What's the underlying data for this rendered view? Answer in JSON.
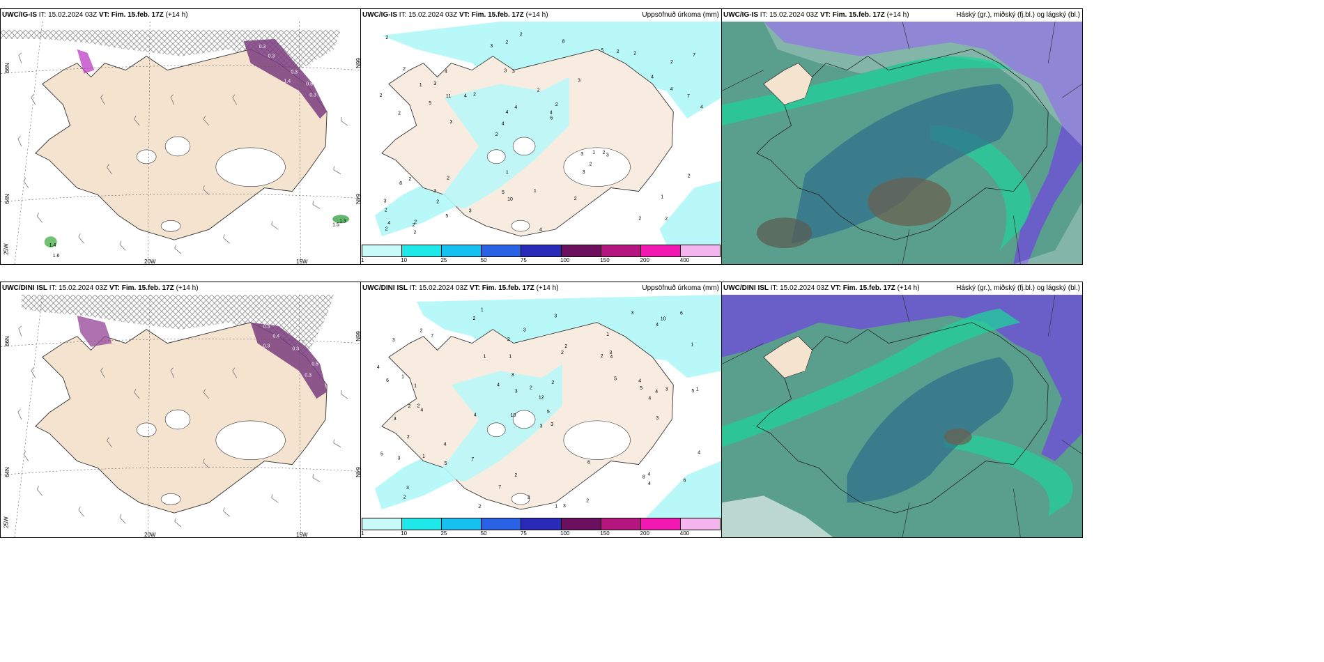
{
  "panels": [
    {
      "model": "UWC/IG-IS",
      "it_label": "IT:",
      "it": "15.02.2024 03Z",
      "vt_label": "VT:",
      "vt": "Fim. 15.feb. 17Z",
      "lead": "(+14 h)",
      "product": ""
    },
    {
      "model": "UWC/IG-IS",
      "it_label": "IT:",
      "it": "15.02.2024 03Z",
      "vt_label": "VT:",
      "vt": "Fim. 15.feb. 17Z",
      "lead": "(+14 h)",
      "product": "Uppsöfnuð úrkoma (mm)"
    },
    {
      "model": "UWC/IG-IS",
      "it_label": "IT:",
      "it": "15.02.2024 03Z",
      "vt_label": "VT:",
      "vt": "Fim. 15.feb. 17Z",
      "lead": "(+14 h)",
      "product": "Háský (gr.), miðský (fj.bl.) og lágský (bl.)"
    },
    {
      "model": "UWC/DINI ISL",
      "it_label": "IT:",
      "it": "15.02.2024 03Z",
      "vt_label": "VT:",
      "vt": "Fim. 15.feb. 17Z",
      "lead": "(+14 h)",
      "product": ""
    },
    {
      "model": "UWC/DINI ISL",
      "it_label": "IT:",
      "it": "15.02.2024 03Z",
      "vt_label": "VT:",
      "vt": "Fim. 15.feb. 17Z",
      "lead": "(+14 h)",
      "product": "Uppsöfnuð úrkoma (mm)"
    },
    {
      "model": "UWC/DINI ISL",
      "it_label": "IT:",
      "it": "15.02.2024 03Z",
      "vt_label": "VT:",
      "vt": "Fim. 15.feb. 17Z",
      "lead": "(+14 h)",
      "product": "Háský (gr.), miðský (fj.bl.) og lágský (bl.)"
    }
  ],
  "grid_labels": {
    "lat_66": "66N",
    "lat_64": "64N",
    "lon_25": "25W",
    "lon_20": "20W",
    "lon_15": "15W",
    "lat_66_right": "66N",
    "lat_64_right": "64N"
  },
  "precip_scale": {
    "colors": [
      "#c9fafa",
      "#20e8e8",
      "#17c0ef",
      "#2a62e6",
      "#2a2ab8",
      "#6d0f5f",
      "#b4157e",
      "#f21ab3",
      "#f5b6f0"
    ],
    "ticks": [
      "1",
      "10",
      "25",
      "50",
      "75",
      "100",
      "150",
      "200",
      "400"
    ]
  },
  "precip_values_top": [
    "2",
    "2",
    "2",
    "2",
    "3",
    "2",
    "3",
    "2",
    "2",
    "2",
    "2",
    "2",
    "3",
    "2",
    "3",
    "2",
    "2",
    "4",
    "3",
    "4",
    "4",
    "5",
    "4",
    "4",
    "5",
    "2",
    "2",
    "1",
    "2",
    "4",
    "4",
    "5",
    "3",
    "5",
    "7",
    "4",
    "4",
    "10",
    "6",
    "8",
    "4",
    "7",
    "2",
    "2",
    "3",
    "2",
    "2",
    "1",
    "2",
    "2",
    "3",
    "2",
    "3",
    "2",
    "2",
    "8",
    "3",
    "4",
    "2",
    "1",
    "3",
    "1",
    "11",
    "3",
    "2",
    "1"
  ],
  "precip_values_bottom": [
    "1",
    "1",
    "5",
    "10",
    "3",
    "2",
    "3",
    "2",
    "3",
    "2",
    "12",
    "2",
    "2",
    "4",
    "1",
    "3",
    "2",
    "3",
    "5",
    "4",
    "1",
    "2",
    "1",
    "3",
    "5",
    "1",
    "3",
    "5",
    "4",
    "3",
    "8",
    "2",
    "1",
    "4",
    "6",
    "4",
    "4",
    "7",
    "6",
    "3",
    "3",
    "2",
    "2",
    "2",
    "3",
    "4",
    "4",
    "3",
    "4",
    "5",
    "2",
    "4",
    "2",
    "4",
    "3",
    "5",
    "3",
    "2",
    "10",
    "1",
    "6",
    "3",
    "7",
    "7",
    "3",
    "6",
    "4",
    "4",
    "1",
    "1",
    "2"
  ],
  "wind_values_top": [
    "0.3",
    "0.3",
    "0.3",
    "1.4",
    "0.5",
    "0.3",
    "1.5",
    "1.3",
    "1.4",
    "1.6"
  ],
  "wind_values_bottom": [
    "0.3",
    "0.4",
    "0.3",
    "0.3",
    "0.5",
    "0.3"
  ]
}
